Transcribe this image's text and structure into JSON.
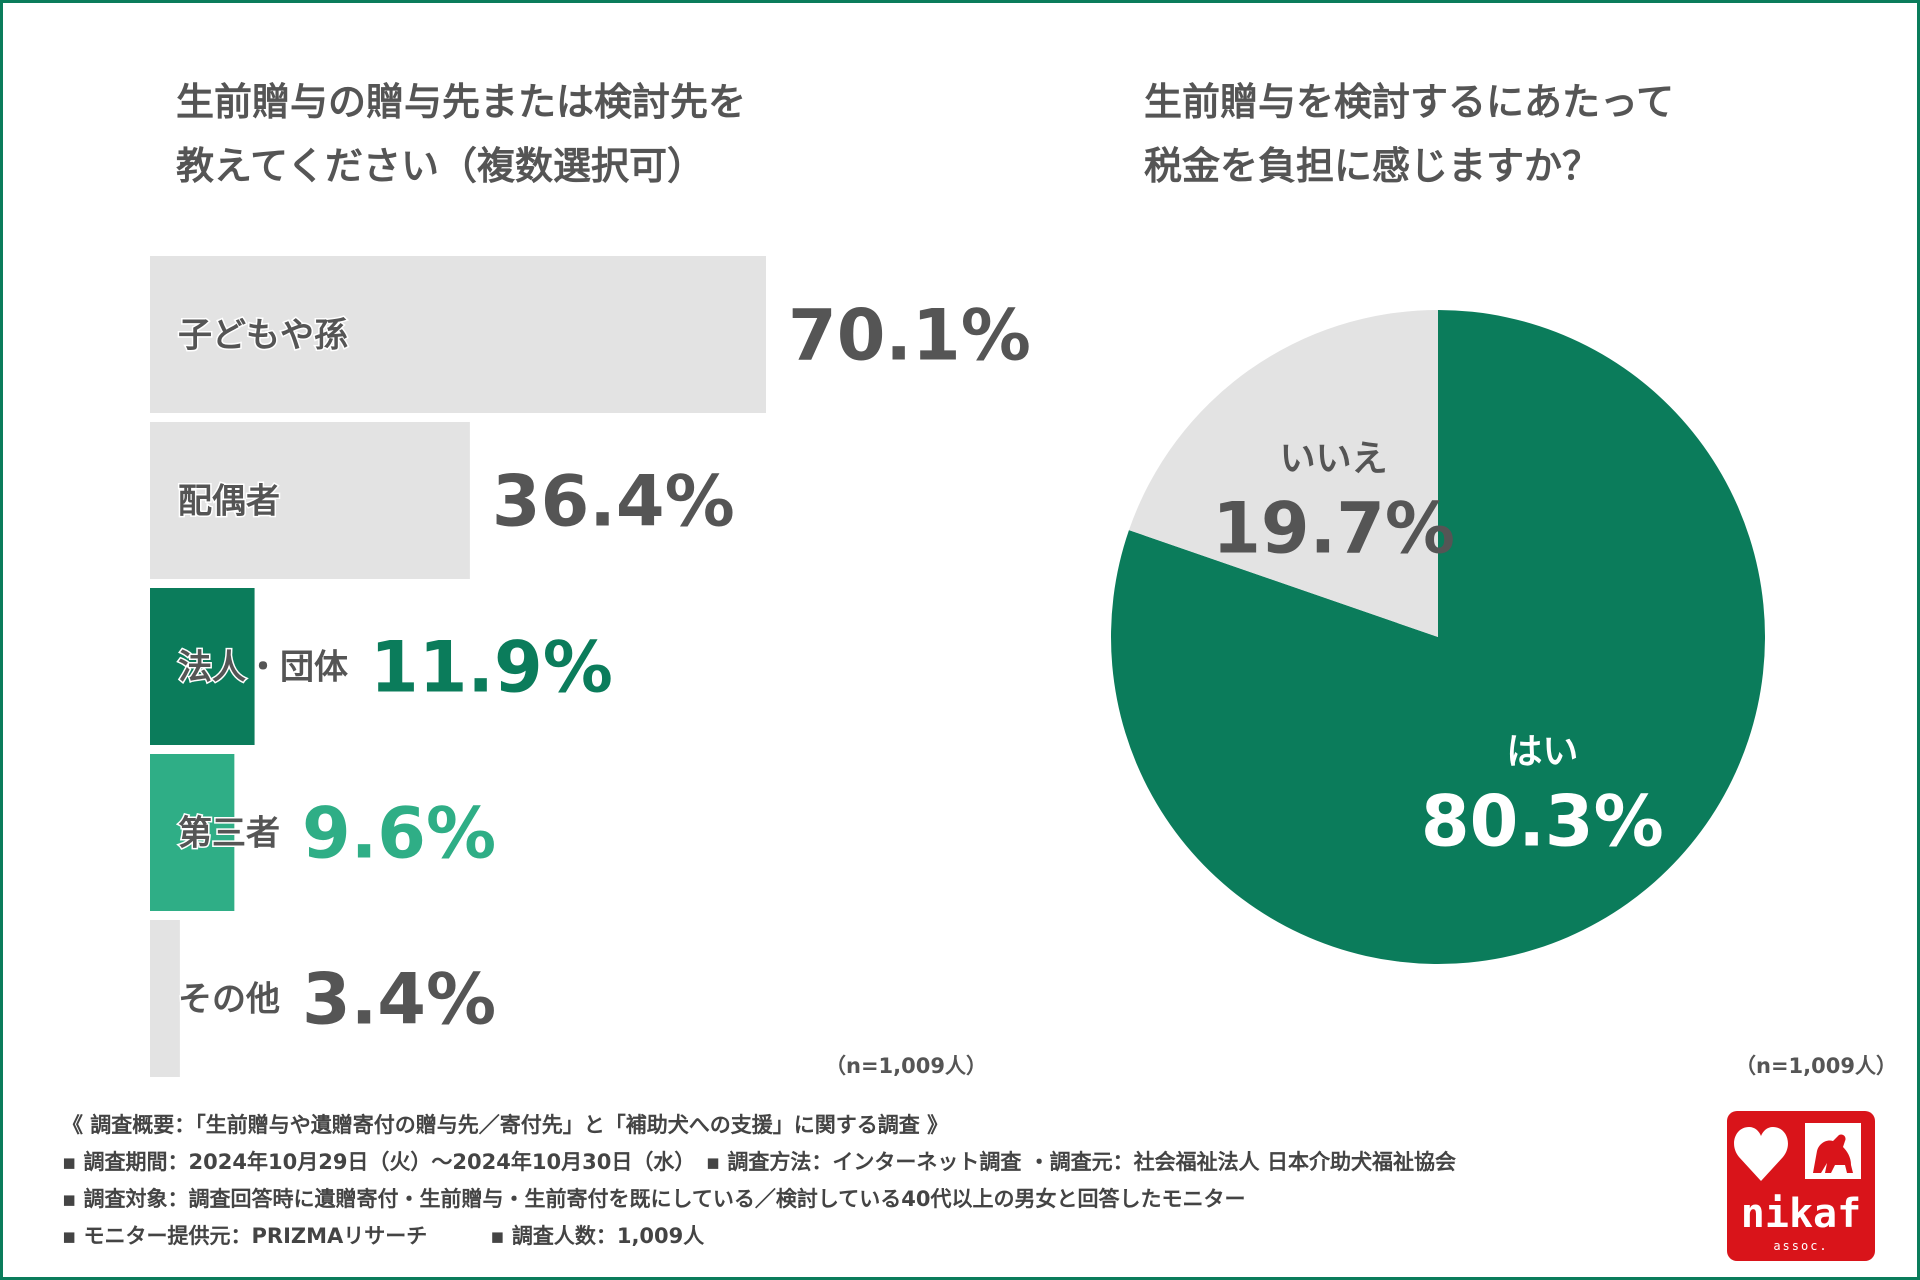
{
  "chart_data": [
    {
      "type": "bar",
      "orientation": "horizontal",
      "title": [
        "生前贈与の贈与先または検討先を",
        "教えてください（複数選択可）"
      ],
      "categories": [
        "子どもや孫",
        "配偶者",
        "法人・団体",
        "第三者",
        "その他"
      ],
      "values": [
        70.1,
        36.4,
        11.9,
        9.6,
        3.4
      ],
      "value_labels": [
        "70.1%",
        "36.4%",
        "11.9%",
        "9.6%",
        "3.4%"
      ],
      "xlim": [
        0,
        100
      ],
      "unit": "%",
      "colors": [
        "#e3e3e3",
        "#e3e3e3",
        "#0b7c5b",
        "#2fae86",
        "#e3e3e3"
      ],
      "label_colors": [
        "#555555",
        "#555555",
        "#0b7c5b",
        "#2fae86",
        "#555555"
      ],
      "note": "（n=1,009人）"
    },
    {
      "type": "pie",
      "title": [
        "生前贈与を検討するにあたって",
        "税金を負担に感じますか？"
      ],
      "slices": [
        {
          "label": "はい",
          "value": 80.3,
          "display": "80.3%",
          "color": "#0b7c5b",
          "text_color": "#ffffff"
        },
        {
          "label": "いいえ",
          "value": 19.7,
          "display": "19.7%",
          "color": "#e3e3e3",
          "text_color": "#555555"
        }
      ],
      "note": "（n=1,009人）"
    }
  ],
  "footer": {
    "lines": [
      "《 調査概要：「生前贈与や遺贈寄付の贈与先／寄付先」と「補助犬への支援」に関する調査 》",
      "▪ 調査期間：2024年10月29日（火）～2024年10月30日（水）　▪ 調査方法：インターネット調査 ・調査元：社会福祉法人 日本介助犬福祉協会",
      "▪ 調査対象：調査回答時に遺贈寄付・生前贈与・生前寄付を既にしている／検討している40代以上の男女と回答したモニター",
      "▪ モニター提供元：PRIZMAリサーチ　　　▪ 調査人数：1,009人"
    ]
  },
  "logo": {
    "word": "nikaf",
    "sub": "assoc.",
    "color": "#d9141a",
    "icons": [
      "heart-icon",
      "dog-icon"
    ]
  }
}
